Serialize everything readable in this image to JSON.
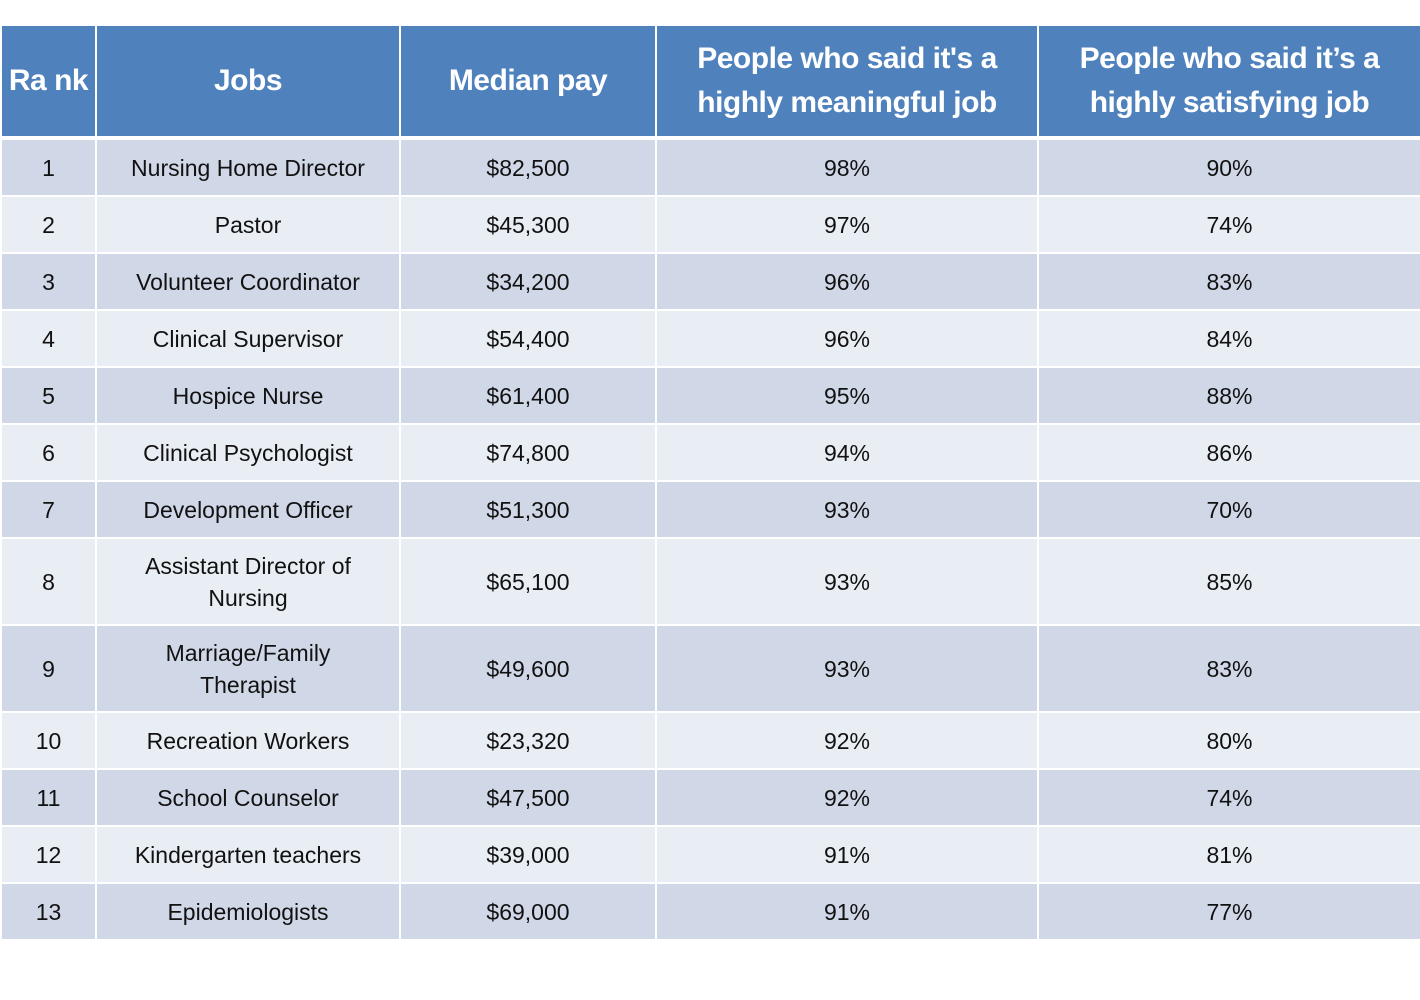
{
  "table": {
    "header_color": "#4f81bd",
    "row_color_odd": "#d0d8e8",
    "row_color_even": "#e9edf4",
    "columns": [
      "Ra nk",
      "Jobs",
      "Median pay",
      "People who said it's a highly meaningful job",
      "People who said it’s a highly satisfying job"
    ],
    "rows": [
      {
        "rank": "1",
        "job": "Nursing Home Director",
        "pay": "$82,500",
        "meaningful": "98%",
        "satisfying": "90%"
      },
      {
        "rank": "2",
        "job": "Pastor",
        "pay": "$45,300",
        "meaningful": "97%",
        "satisfying": "74%"
      },
      {
        "rank": "3",
        "job": "Volunteer Coordinator",
        "pay": "$34,200",
        "meaningful": "96%",
        "satisfying": "83%"
      },
      {
        "rank": "4",
        "job": "Clinical Supervisor",
        "pay": "$54,400",
        "meaningful": "96%",
        "satisfying": "84%"
      },
      {
        "rank": "5",
        "job": "Hospice Nurse",
        "pay": "$61,400",
        "meaningful": "95%",
        "satisfying": "88%"
      },
      {
        "rank": "6",
        "job": "Clinical Psychologist",
        "pay": "$74,800",
        "meaningful": "94%",
        "satisfying": "86%"
      },
      {
        "rank": "7",
        "job": "Development Officer",
        "pay": "$51,300",
        "meaningful": "93%",
        "satisfying": "70%"
      },
      {
        "rank": "8",
        "job": "Assistant Director of Nursing",
        "pay": "$65,100",
        "meaningful": "93%",
        "satisfying": "85%"
      },
      {
        "rank": "9",
        "job": "Marriage/Family Therapist",
        "pay": "$49,600",
        "meaningful": "93%",
        "satisfying": "83%"
      },
      {
        "rank": "10",
        "job": "Recreation Workers",
        "pay": "$23,320",
        "meaningful": "92%",
        "satisfying": "80%"
      },
      {
        "rank": "11",
        "job": "School Counselor",
        "pay": "$47,500",
        "meaningful": "92%",
        "satisfying": "74%"
      },
      {
        "rank": "12",
        "job": "Kindergarten teachers",
        "pay": "$39,000",
        "meaningful": "91%",
        "satisfying": "81%"
      },
      {
        "rank": "13",
        "job": "Epidemiologists",
        "pay": "$69,000",
        "meaningful": "91%",
        "satisfying": "77%"
      }
    ]
  }
}
